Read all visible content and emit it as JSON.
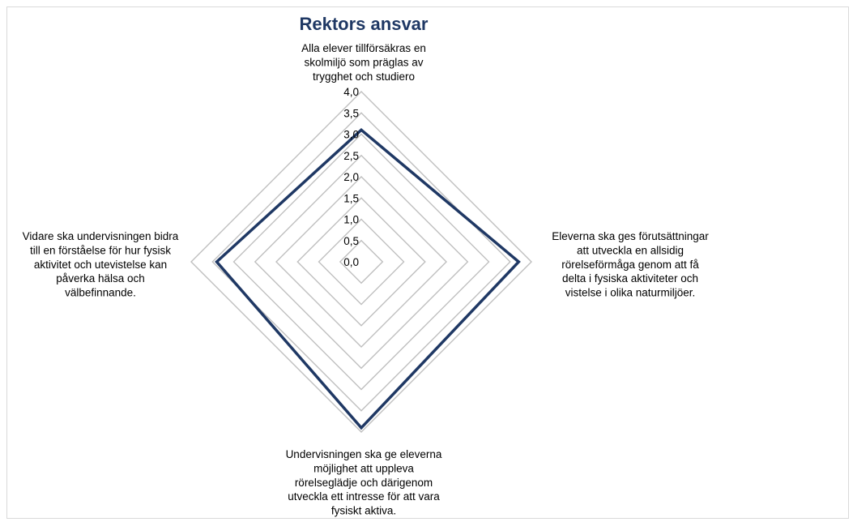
{
  "chart_data": {
    "type": "radar",
    "title": "Rektors ansvar",
    "categories": [
      [
        "Alla elever tillförsäkras en",
        "skolmiljö som präglas av",
        "trygghet och studiero"
      ],
      [
        "Eleverna ska ges förutsättningar",
        "att utveckla en allsidig",
        "rörelseförmåga genom att få",
        "delta i fysiska aktiviteter och",
        "vistelse i olika naturmiljöer."
      ],
      [
        "Undervisningen ska ge eleverna",
        "möjlighet att uppleva",
        "rörelseglädje och därigenom",
        "utveckla ett intresse för att vara",
        "fysiskt aktiva."
      ],
      [
        "Vidare ska undervisningen bidra",
        "till en förståelse för hur fysisk",
        "aktivitet och utevistelse kan",
        "påverka hälsa och",
        "välbefinnande."
      ]
    ],
    "series": [
      {
        "values": [
          3.1,
          3.7,
          3.9,
          3.4
        ]
      }
    ],
    "ticks": [
      "0,0",
      "0,5",
      "1,0",
      "1,5",
      "2,0",
      "2,5",
      "3,0",
      "3,5",
      "4,0"
    ],
    "rlim": [
      0,
      4
    ],
    "grid": true,
    "colors": {
      "series": "#1f3864",
      "grid": "#bfbfbf",
      "title": "#1f3864"
    }
  }
}
